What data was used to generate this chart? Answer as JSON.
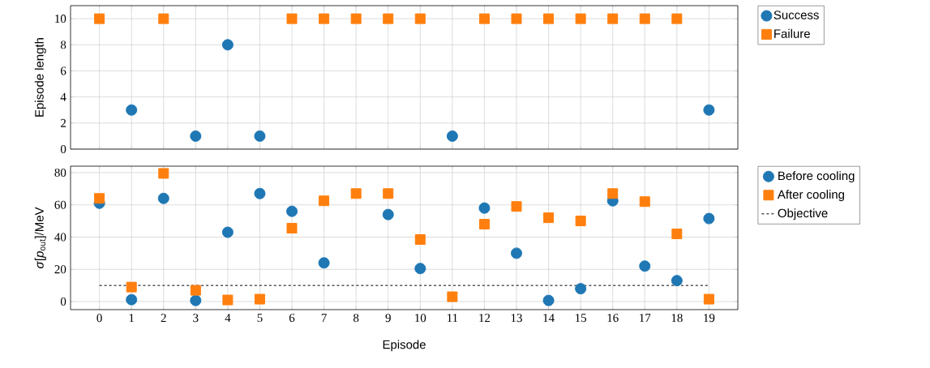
{
  "chart_data": [
    {
      "type": "scatter",
      "ylabel": "Episode length",
      "x": [
        0,
        1,
        2,
        3,
        4,
        5,
        6,
        7,
        8,
        9,
        10,
        11,
        12,
        13,
        14,
        15,
        16,
        17,
        18,
        19
      ],
      "xlim": [
        -0.9,
        19.9
      ],
      "xticks": [
        0,
        1,
        2,
        3,
        4,
        5,
        6,
        7,
        8,
        9,
        10,
        11,
        12,
        13,
        14,
        15,
        16,
        17,
        18,
        19
      ],
      "ylim": [
        0,
        11
      ],
      "yticks": [
        0,
        2,
        4,
        6,
        8,
        10
      ],
      "tick_labels": "y",
      "grid": true,
      "legend": "right",
      "series": [
        {
          "name": "Success",
          "color": "#1f77b4",
          "marker": "circle",
          "values": [
            null,
            3,
            null,
            1,
            8,
            1,
            null,
            null,
            null,
            null,
            null,
            1,
            null,
            null,
            null,
            null,
            null,
            null,
            null,
            3
          ]
        },
        {
          "name": "Failure",
          "color": "#ff7f0e",
          "marker": "square",
          "values": [
            10,
            null,
            10,
            null,
            null,
            null,
            10,
            10,
            10,
            10,
            10,
            null,
            10,
            10,
            10,
            10,
            10,
            10,
            10,
            null
          ]
        }
      ]
    },
    {
      "type": "scatter",
      "xlabel": "Episode",
      "ylabel": "*σ*[*p*$_{out}$]/MeV",
      "x": [
        0,
        1,
        2,
        3,
        4,
        5,
        6,
        7,
        8,
        9,
        10,
        11,
        12,
        13,
        14,
        15,
        16,
        17,
        18,
        19
      ],
      "xlim": [
        -0.9,
        19.9
      ],
      "xticks": [
        0,
        1,
        2,
        3,
        4,
        5,
        6,
        7,
        8,
        9,
        10,
        11,
        12,
        13,
        14,
        15,
        16,
        17,
        18,
        19
      ],
      "ylim": [
        -5,
        84
      ],
      "yticks": [
        0,
        20,
        40,
        60,
        80
      ],
      "grid": true,
      "legend": "right",
      "series": [
        {
          "name": "Before cooling",
          "color": "#1f77b4",
          "marker": "circle",
          "values": [
            61,
            1.2,
            64,
            0.7,
            43,
            67,
            56,
            24,
            null,
            54,
            20.5,
            null,
            58,
            30,
            0.7,
            8,
            62.5,
            22,
            13,
            51.5
          ]
        },
        {
          "name": "After cooling",
          "color": "#ff7f0e",
          "marker": "square",
          "values": [
            64,
            9,
            79.5,
            7,
            1,
            1.5,
            45.5,
            62.5,
            67,
            67,
            38.5,
            3,
            48,
            59,
            52,
            50,
            67,
            62,
            42,
            1.5
          ]
        },
        {
          "name": "Objective",
          "type": "line",
          "color": "#000000",
          "marker": "none",
          "line_style": "dashed",
          "x": [
            0,
            19
          ],
          "values": [
            10,
            10
          ]
        }
      ]
    }
  ]
}
